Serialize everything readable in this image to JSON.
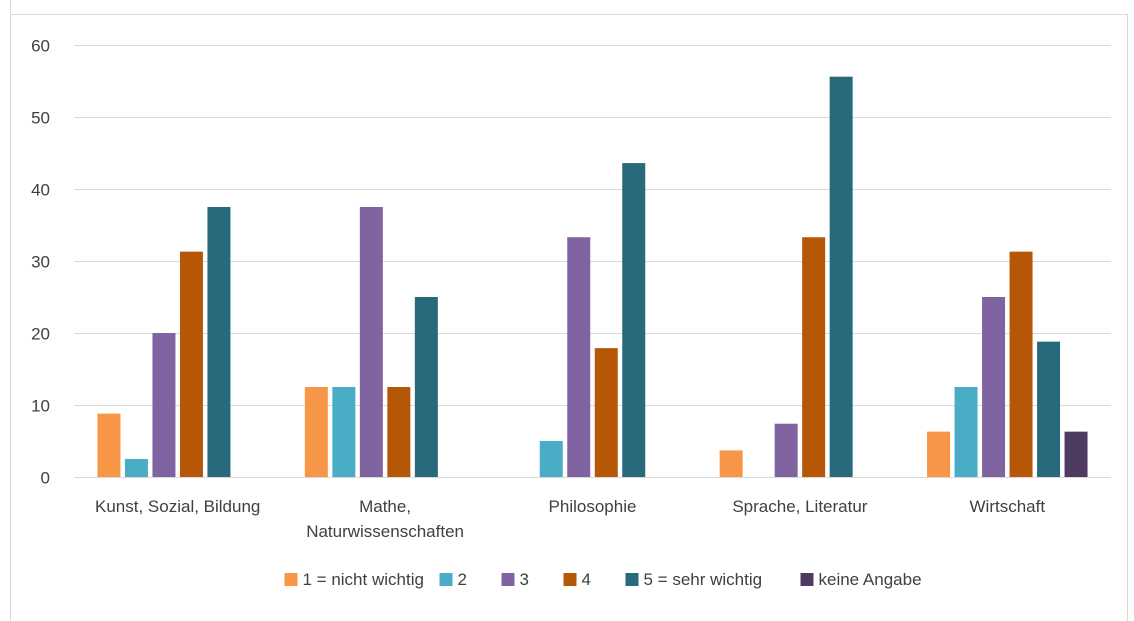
{
  "chart_data": {
    "type": "bar",
    "title": "",
    "xlabel": "",
    "ylabel": "",
    "ylim": [
      0,
      60
    ],
    "yticks": [
      0,
      10,
      20,
      30,
      40,
      50,
      60
    ],
    "grid": true,
    "legend_position": "bottom",
    "categories": [
      [
        "Kunst, Sozial, Bildung"
      ],
      [
        "Mathe,",
        "Naturwissenschaften"
      ],
      [
        "Philosophie"
      ],
      [
        "Sprache, Literatur"
      ],
      [
        "Wirtschaft"
      ]
    ],
    "series": [
      {
        "name": "1 = nicht wichtig",
        "color": "#f79646",
        "values": [
          8.8,
          12.5,
          0,
          3.7,
          6.3
        ]
      },
      {
        "name": "2",
        "color": "#4bacc6",
        "values": [
          2.5,
          12.5,
          5.0,
          0,
          12.5
        ]
      },
      {
        "name": "3",
        "color": "#8064a2",
        "values": [
          20.0,
          37.5,
          33.3,
          7.4,
          25.0
        ]
      },
      {
        "name": "4",
        "color": "#b65708",
        "values": [
          31.3,
          12.5,
          17.9,
          33.3,
          31.3
        ]
      },
      {
        "name": "5 = sehr wichtig",
        "color": "#276a7c",
        "values": [
          37.5,
          25.0,
          43.6,
          55.6,
          18.8
        ]
      },
      {
        "name": "keine Angabe",
        "color": "#4f3b60",
        "values": [
          0,
          0,
          0,
          0,
          6.3
        ]
      }
    ]
  }
}
